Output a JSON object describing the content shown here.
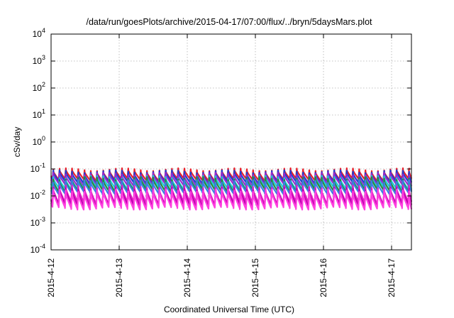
{
  "chart_data": {
    "type": "line",
    "title": "/data/run/goesPlots/archive/2015-04-17/07:00/flux/../bryn/5daysMars.plot",
    "xlabel": "Coordinated Universal Time (UTC)",
    "ylabel": "cSv/day",
    "x_ticks": [
      "2015-4-12",
      "2015-4-13",
      "2015-4-14",
      "2015-4-15",
      "2015-4-16",
      "2015-4-17"
    ],
    "xlim": [
      "2015-04-12T00:00",
      "2015-04-17T07:00"
    ],
    "y_scale": "log",
    "ylim": [
      0.0001,
      10000
    ],
    "y_ticks": [
      {
        "base": "10",
        "exp": "-4"
      },
      {
        "base": "10",
        "exp": "-3"
      },
      {
        "base": "10",
        "exp": "-2"
      },
      {
        "base": "10",
        "exp": "-1"
      },
      {
        "base": "10",
        "exp": "0"
      },
      {
        "base": "10",
        "exp": "1"
      },
      {
        "base": "10",
        "exp": "2"
      },
      {
        "base": "10",
        "exp": "3"
      },
      {
        "base": "10",
        "exp": "4"
      }
    ],
    "grid": true,
    "sawtooth_period_hours": 2.2,
    "series": [
      {
        "color": "#e8202a",
        "peak": 0.095,
        "trough": 0.04
      },
      {
        "color": "#1e3fd0",
        "peak": 0.08,
        "trough": 0.032
      },
      {
        "color": "#9a2ad0",
        "peak": 0.065,
        "trough": 0.026
      },
      {
        "color": "#1ecad8",
        "peak": 0.05,
        "trough": 0.02
      },
      {
        "color": "#2a8a3a",
        "peak": 0.045,
        "trough": 0.016
      },
      {
        "color": "#3a7ee8",
        "peak": 0.035,
        "trough": 0.013
      },
      {
        "color": "#e020c0",
        "peak": 0.022,
        "trough": 0.0055
      },
      {
        "color": "#c000b0",
        "peak": 0.018,
        "trough": 0.0045
      },
      {
        "color": "#ff40e0",
        "peak": 0.016,
        "trough": 0.0035
      }
    ]
  }
}
